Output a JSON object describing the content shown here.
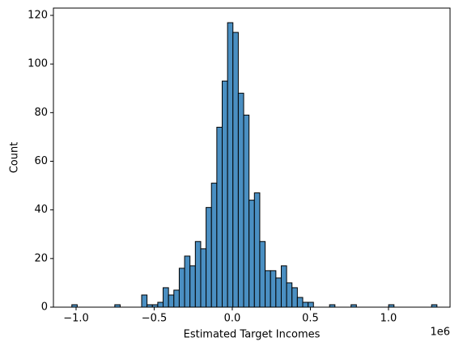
{
  "chart_data": {
    "type": "histogram",
    "x_label": "Estimated Target Incomes",
    "y_label": "Count",
    "x_offset_label": "1e6",
    "color": "#4a8fc2",
    "edgecolor": "#000000",
    "bins": [
      -1027000,
      -992630,
      -958260,
      -923890,
      -889520,
      -855150,
      -820780,
      -786410,
      -752040,
      -717670,
      -683300,
      -648930,
      -614560,
      -580190,
      -545820,
      -511450,
      -477080,
      -442710,
      -408340,
      -373970,
      -339600,
      -305230,
      -270860,
      -236490,
      -202120,
      -167750,
      -133380,
      -99010,
      -64640,
      -30270,
      4100,
      38470,
      72840,
      107210,
      141580,
      175950,
      210320,
      244690,
      279060,
      313430,
      347800,
      382170,
      416540,
      450910,
      485280,
      519650,
      554020,
      588390,
      622760,
      657130,
      691500,
      725870,
      760240,
      794610,
      828980,
      863350,
      897720,
      932090,
      966460,
      1000830,
      1035200,
      1069570,
      1103940,
      1138310,
      1172680,
      1207050,
      1241420,
      1275790,
      1310160
    ],
    "values": [
      1,
      0,
      0,
      0,
      0,
      0,
      0,
      0,
      1,
      0,
      0,
      0,
      0,
      5,
      1,
      1,
      2,
      8,
      5,
      7,
      16,
      21,
      17,
      27,
      24,
      41,
      51,
      74,
      93,
      117,
      113,
      88,
      79,
      44,
      47,
      27,
      15,
      15,
      12,
      17,
      10,
      8,
      4,
      2,
      2,
      0,
      0,
      0,
      1,
      0,
      0,
      0,
      1,
      0,
      0,
      0,
      0,
      0,
      0,
      1,
      0,
      0,
      0,
      0,
      0,
      0,
      0,
      1
    ],
    "xlim": [
      -1145000,
      1394000
    ],
    "xticks": [
      {
        "value": -1000000,
        "label": "−1.0"
      },
      {
        "value": -500000,
        "label": "−0.5"
      },
      {
        "value": 0,
        "label": "0.0"
      },
      {
        "value": 500000,
        "label": "0.5"
      },
      {
        "value": 1000000,
        "label": "1.0"
      }
    ],
    "ylim": [
      0,
      123
    ],
    "yticks": [
      0,
      20,
      40,
      60,
      80,
      100,
      120
    ]
  }
}
